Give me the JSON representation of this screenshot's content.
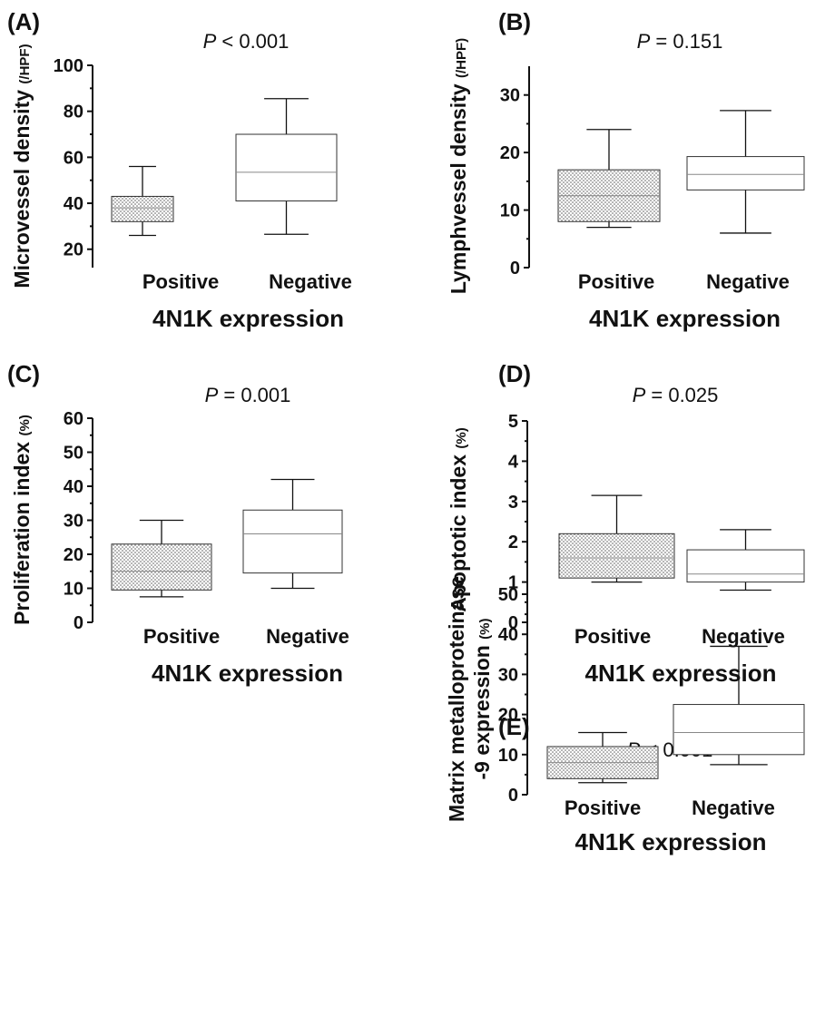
{
  "chart_data": [
    {
      "type": "box",
      "panel_label": "(A)",
      "p_prefix": "P",
      "p_rest": " < 0.001",
      "ylabel_main": "Microvessel density",
      "ylabel_unit": "(/HPF)",
      "xlabel": "4N1K expression",
      "categories": [
        "Positive",
        "Negative"
      ],
      "ylim": [
        12,
        100
      ],
      "yticks": [
        "20",
        "40",
        "60",
        "80",
        "100"
      ],
      "boxes": [
        {
          "min": 26,
          "q1": 32,
          "median": 38,
          "q3": 43,
          "max": 56,
          "fill": "dotted"
        },
        {
          "min": 26.5,
          "q1": 41,
          "median": 53.5,
          "q3": 70,
          "max": 85.5,
          "fill": "white"
        }
      ]
    },
    {
      "type": "box",
      "panel_label": "(B)",
      "p_prefix": "P",
      "p_rest": " = 0.151",
      "ylabel_main": "Lymphvessel density",
      "ylabel_unit": "(/HPF)",
      "xlabel": "4N1K expression",
      "categories": [
        "Positive",
        "Negative"
      ],
      "ylim": [
        0,
        35
      ],
      "yticks": [
        "0",
        "10",
        "20",
        "30"
      ],
      "boxes": [
        {
          "min": 7,
          "q1": 8,
          "median": 12.5,
          "q3": 17,
          "max": 24,
          "fill": "dotted"
        },
        {
          "min": 6,
          "q1": 13.5,
          "median": 16.2,
          "q3": 19.3,
          "max": 27.3,
          "fill": "white"
        }
      ]
    },
    {
      "type": "box",
      "panel_label": "(C)",
      "p_prefix": "P",
      "p_rest": " = 0.001",
      "ylabel_main": "Proliferation index",
      "ylabel_unit": "(%)",
      "xlabel": "4N1K expression",
      "categories": [
        "Positive",
        "Negative"
      ],
      "ylim": [
        0,
        60
      ],
      "yticks": [
        "0",
        "10",
        "20",
        "30",
        "40",
        "50",
        "60"
      ],
      "boxes": [
        {
          "min": 7.5,
          "q1": 9.5,
          "median": 15,
          "q3": 23,
          "max": 30,
          "fill": "dotted"
        },
        {
          "min": 10,
          "q1": 14.5,
          "median": 26,
          "q3": 33,
          "max": 42,
          "fill": "white"
        }
      ]
    },
    {
      "type": "box",
      "panel_label": "(D)",
      "p_prefix": "P",
      "p_rest": " = 0.025",
      "ylabel_main": "Apoptotic index",
      "ylabel_unit": "(%)",
      "xlabel": "4N1K expression",
      "categories": [
        "Positive",
        "Negative"
      ],
      "ylim": [
        0,
        5
      ],
      "yticks": [
        "0",
        "1",
        "2",
        "3",
        "4",
        "5"
      ],
      "boxes": [
        {
          "min": 1.0,
          "q1": 1.1,
          "median": 1.6,
          "q3": 2.2,
          "max": 3.15,
          "fill": "dotted"
        },
        {
          "min": 0.8,
          "q1": 1.0,
          "median": 1.2,
          "q3": 1.8,
          "max": 2.3,
          "fill": "white"
        }
      ]
    },
    {
      "type": "box",
      "panel_label": "(E)",
      "p_prefix": "P",
      "p_rest": " < 0.001",
      "ylabel_line1": "Matrix metalloproteinase",
      "ylabel_main": "-9 expression",
      "ylabel_unit": "(%)",
      "xlabel": "4N1K expression",
      "categories": [
        "Positive",
        "Negative"
      ],
      "ylim": [
        0,
        50
      ],
      "yticks": [
        "0",
        "10",
        "20",
        "30",
        "40",
        "50"
      ],
      "boxes": [
        {
          "min": 3,
          "q1": 4,
          "median": 8,
          "q3": 12,
          "max": 15.5,
          "fill": "dotted"
        },
        {
          "min": 7.5,
          "q1": 10,
          "median": 15.5,
          "q3": 22.5,
          "max": 37,
          "fill": "white"
        }
      ]
    }
  ]
}
